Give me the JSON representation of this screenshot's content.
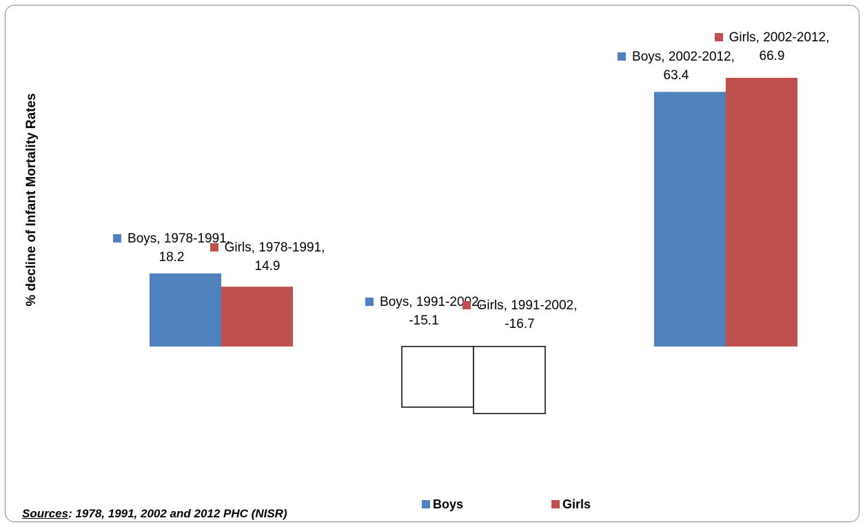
{
  "chart_data": {
    "type": "bar",
    "y_label": "% decline of Infant  Mortality Rates",
    "categories": [
      "1978-1991",
      "1991-2002",
      "2002-2012"
    ],
    "series": [
      {
        "name": "Boys",
        "color": "#4f81bd",
        "values": [
          18.2,
          -15.1,
          63.4
        ],
        "value_labels": [
          "Boys, 1978-1991, 18.2",
          "Boys, 1991-2002, -15.1",
          "Boys, 2002-2012, 63.4"
        ]
      },
      {
        "name": "Girls",
        "color": "#c0504d",
        "values": [
          14.9,
          -16.7,
          66.9
        ],
        "value_labels": [
          "Girls, 1978-1991, 14.9",
          "Girls, 1991-2002, -16.7",
          "Girls, 2002-2012, 66.9"
        ]
      }
    ],
    "invert_if_negative": true,
    "legend": "bottom",
    "source_label": "Sources",
    "source_text": ":  1978, 1991, 2002 and 2012 PHC (NISR)"
  }
}
